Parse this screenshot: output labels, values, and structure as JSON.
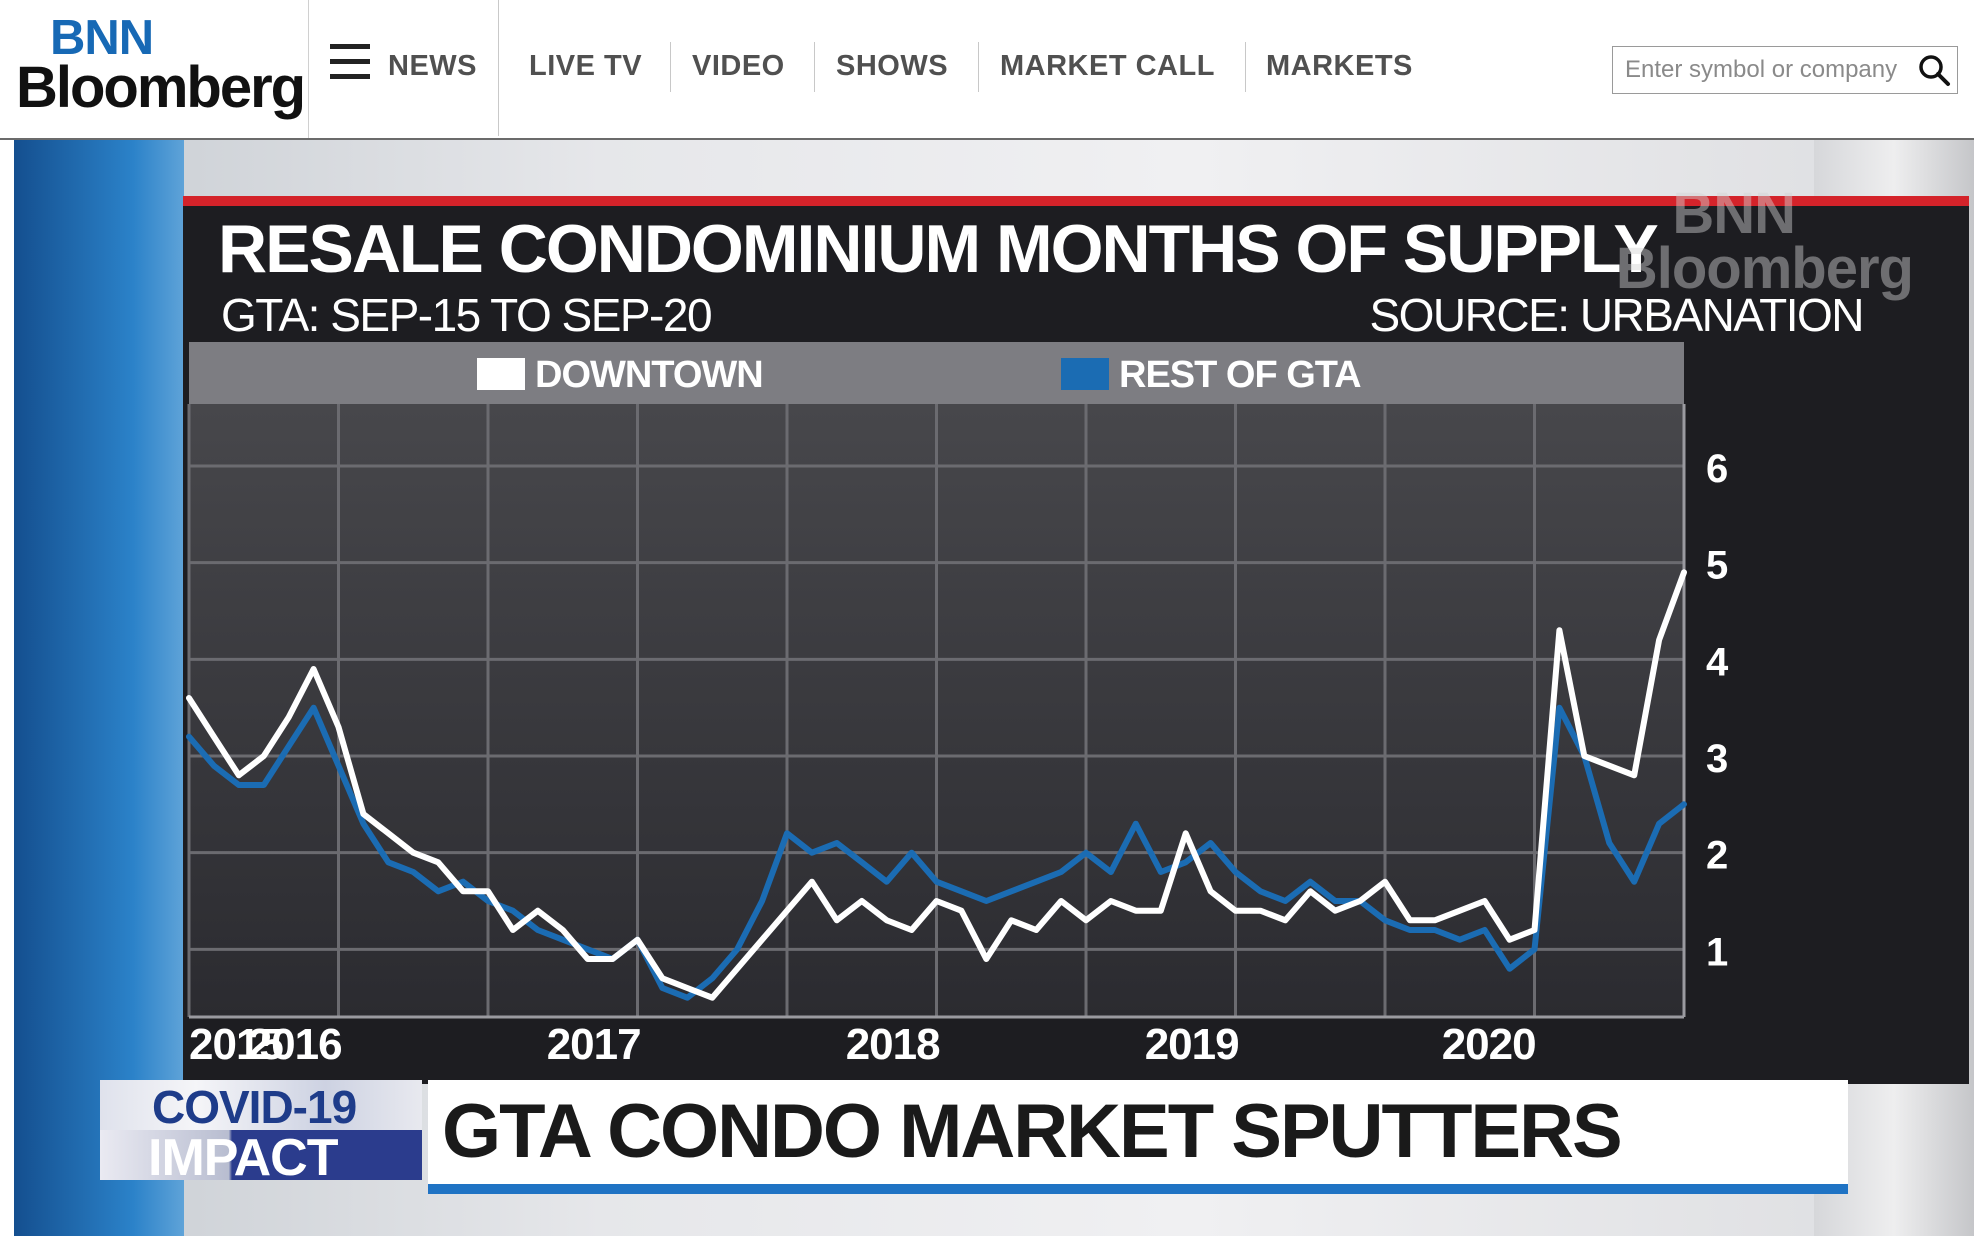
{
  "brand": {
    "line1": "BNN",
    "line2": "Bloomberg"
  },
  "nav": {
    "items": [
      {
        "label": "NEWS"
      },
      {
        "label": "LIVE TV"
      },
      {
        "label": "VIDEO"
      },
      {
        "label": "SHOWS"
      },
      {
        "label": "MARKET CALL"
      },
      {
        "label": "MARKETS"
      }
    ],
    "menu_icon": "hamburger-menu-icon"
  },
  "search": {
    "placeholder": "Enter symbol or company",
    "icon": "search-icon"
  },
  "graphic": {
    "title": "RESALE CONDOMINIUM MONTHS OF SUPPLY",
    "subtitle": "GTA: SEP-15 TO SEP-20",
    "source": "SOURCE: URBANATION",
    "watermark_line1": "BNN",
    "watermark_line2": "Bloomberg"
  },
  "lower_third": {
    "tag_line1": "COVID-19",
    "tag_line2": "IMPACT",
    "headline": "GTA CONDO MARKET SPUTTERS",
    "accent_color": "#1f73c4"
  },
  "chart_data": {
    "type": "line",
    "title": "RESALE CONDOMINIUM MONTHS OF SUPPLY",
    "subtitle": "GTA: SEP-15 TO SEP-20",
    "x_ticks": [
      "2015",
      "2016",
      "2017",
      "2018",
      "2019",
      "2020"
    ],
    "y_ticks": [
      1,
      2,
      3,
      4,
      5,
      6
    ],
    "ylim": [
      0.3,
      6.6
    ],
    "grid": true,
    "legend": "top",
    "x": [
      "Sep-15",
      "Oct-15",
      "Nov-15",
      "Dec-15",
      "Jan-16",
      "Feb-16",
      "Mar-16",
      "Apr-16",
      "May-16",
      "Jun-16",
      "Jul-16",
      "Aug-16",
      "Sep-16",
      "Oct-16",
      "Nov-16",
      "Dec-16",
      "Jan-17",
      "Feb-17",
      "Mar-17",
      "Apr-17",
      "May-17",
      "Jun-17",
      "Jul-17",
      "Aug-17",
      "Sep-17",
      "Oct-17",
      "Nov-17",
      "Dec-17",
      "Jan-18",
      "Feb-18",
      "Mar-18",
      "Apr-18",
      "May-18",
      "Jun-18",
      "Jul-18",
      "Aug-18",
      "Sep-18",
      "Oct-18",
      "Nov-18",
      "Dec-18",
      "Jan-19",
      "Feb-19",
      "Mar-19",
      "Apr-19",
      "May-19",
      "Jun-19",
      "Jul-19",
      "Aug-19",
      "Sep-19",
      "Oct-19",
      "Nov-19",
      "Dec-19",
      "Jan-20",
      "Feb-20",
      "Mar-20",
      "Apr-20",
      "May-20",
      "Jun-20",
      "Jul-20",
      "Aug-20",
      "Sep-20"
    ],
    "series": [
      {
        "name": "DOWNTOWN",
        "color": "#ffffff",
        "values": [
          3.6,
          3.2,
          2.8,
          3.0,
          3.4,
          3.9,
          3.3,
          2.4,
          2.2,
          2.0,
          1.9,
          1.6,
          1.6,
          1.2,
          1.4,
          1.2,
          0.9,
          0.9,
          1.1,
          0.7,
          0.6,
          0.5,
          0.8,
          1.1,
          1.4,
          1.7,
          1.3,
          1.5,
          1.3,
          1.2,
          1.5,
          1.4,
          0.9,
          1.3,
          1.2,
          1.5,
          1.3,
          1.5,
          1.4,
          1.4,
          2.2,
          1.6,
          1.4,
          1.4,
          1.3,
          1.6,
          1.4,
          1.5,
          1.7,
          1.3,
          1.3,
          1.4,
          1.5,
          1.1,
          1.2,
          4.3,
          3.0,
          2.9,
          2.8,
          4.2,
          4.9
        ]
      },
      {
        "name": "REST OF GTA",
        "color": "#1b6cb3",
        "values": [
          3.2,
          2.9,
          2.7,
          2.7,
          3.1,
          3.5,
          2.9,
          2.3,
          1.9,
          1.8,
          1.6,
          1.7,
          1.5,
          1.4,
          1.2,
          1.1,
          1.0,
          0.9,
          1.1,
          0.6,
          0.5,
          0.7,
          1.0,
          1.5,
          2.2,
          2.0,
          2.1,
          1.9,
          1.7,
          2.0,
          1.7,
          1.6,
          1.5,
          1.6,
          1.7,
          1.8,
          2.0,
          1.8,
          2.3,
          1.8,
          1.9,
          2.1,
          1.8,
          1.6,
          1.5,
          1.7,
          1.5,
          1.5,
          1.3,
          1.2,
          1.2,
          1.1,
          1.2,
          0.8,
          1.0,
          3.5,
          3.0,
          2.1,
          1.7,
          2.3,
          2.5
        ]
      }
    ]
  }
}
